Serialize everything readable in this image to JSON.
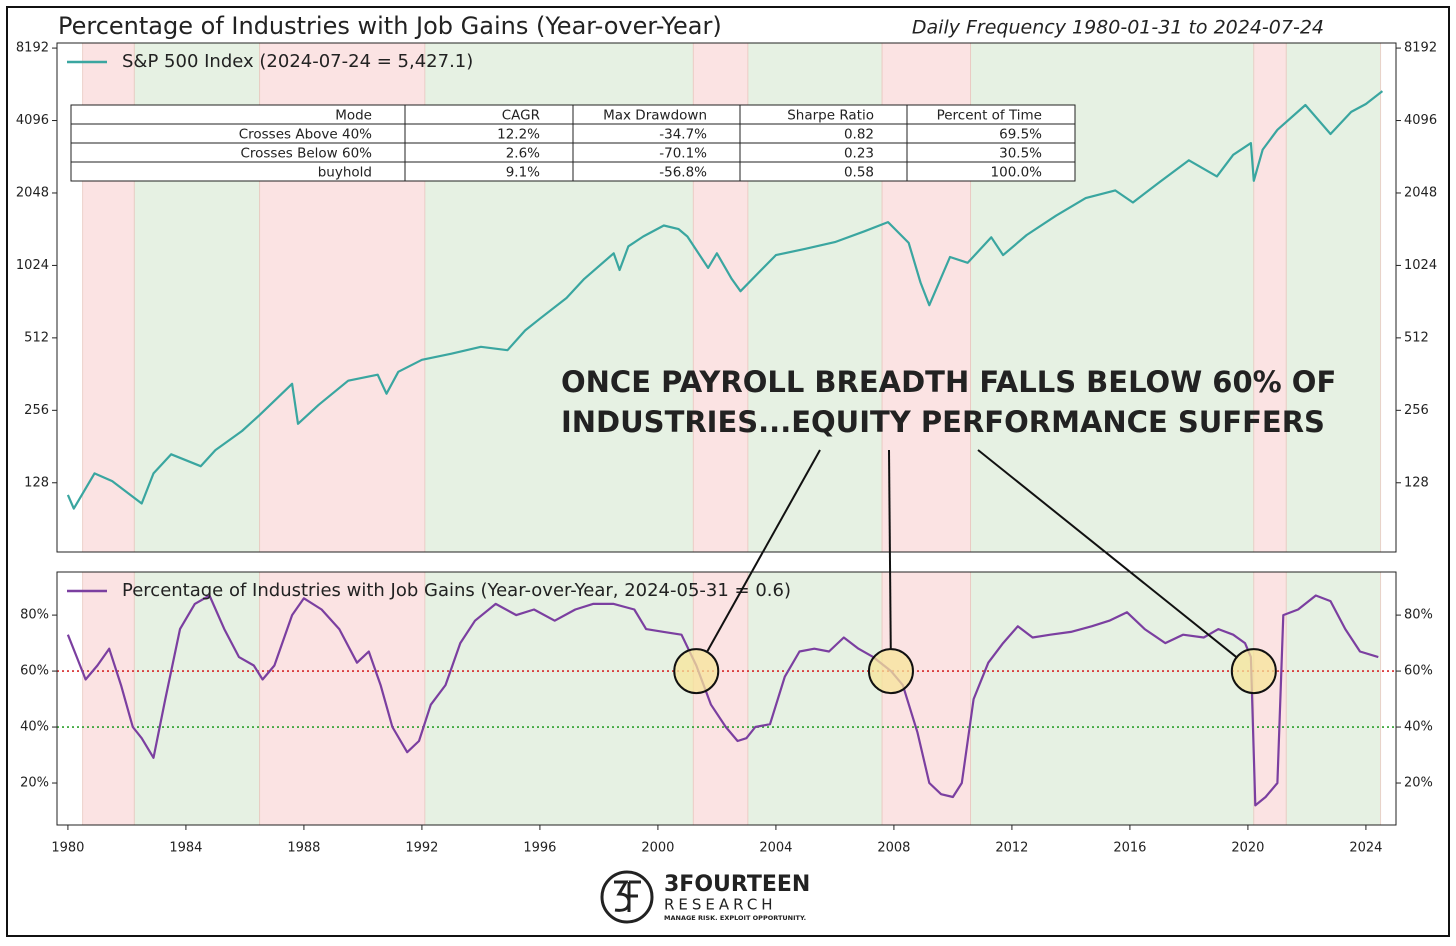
{
  "title": "Percentage of Industries with Job Gains (Year-over-Year)",
  "subtitle": "Daily Frequency 1980-01-31 to 2024-07-24",
  "regimes": [
    {
      "start": 1980.5,
      "end": 1982.25,
      "color": "#fbe3e3"
    },
    {
      "start": 1982.25,
      "end": 1986.5,
      "color": "#e6f1e3"
    },
    {
      "start": 1986.5,
      "end": 1992.1,
      "color": "#fbe3e3"
    },
    {
      "start": 1992.1,
      "end": 2001.2,
      "color": "#e6f1e3"
    },
    {
      "start": 2001.2,
      "end": 2003.05,
      "color": "#fbe3e3"
    },
    {
      "start": 2003.05,
      "end": 2007.6,
      "color": "#e6f1e3"
    },
    {
      "start": 2007.6,
      "end": 2010.6,
      "color": "#fbe3e3"
    },
    {
      "start": 2010.6,
      "end": 2020.2,
      "color": "#e6f1e3"
    },
    {
      "start": 2020.2,
      "end": 2021.3,
      "color": "#fbe3e3"
    },
    {
      "start": 2021.3,
      "end": 2024.5,
      "color": "#e6f1e3"
    }
  ],
  "table": {
    "header": [
      "Mode",
      "CAGR",
      "Max Drawdown",
      "Sharpe Ratio",
      "Percent of Time"
    ],
    "rows": [
      [
        "Crosses Above 40%",
        "12.2%",
        "-34.7%",
        "0.82",
        "69.5%"
      ],
      [
        "Crosses Below 60%",
        "2.6%",
        "-70.1%",
        "0.23",
        "30.5%"
      ],
      [
        "buyhold",
        "9.1%",
        "-56.8%",
        "0.58",
        "100.0%"
      ]
    ]
  },
  "logo": {
    "name": "3FOURTEEN",
    "sub": "RESEARCH",
    "tagline": "MANAGE RISK. EXPLOIT OPPORTUNITY."
  },
  "chart_data": [
    {
      "type": "line",
      "yscale": "log",
      "legend": "upper left",
      "xlim": [
        1979.63,
        2025.02
      ],
      "ylim": [
        66,
        8600
      ],
      "yticks": [
        128,
        256,
        512,
        1024,
        2048,
        4096,
        8192
      ],
      "x": [
        1980.0,
        1980.2,
        1980.9,
        1981.5,
        1982.5,
        1982.9,
        1983.5,
        1984.5,
        1985.0,
        1985.9,
        1986.5,
        1987.6,
        1987.8,
        1988.5,
        1989.5,
        1990.5,
        1990.8,
        1991.2,
        1992.0,
        1993.0,
        1994.0,
        1994.9,
        1995.5,
        1996.0,
        1996.9,
        1997.5,
        1998.5,
        1998.7,
        1999.0,
        1999.5,
        2000.2,
        2000.7,
        2001.0,
        2001.7,
        2002.0,
        2002.5,
        2002.8,
        2003.5,
        2004.0,
        2005.0,
        2006.0,
        2007.0,
        2007.8,
        2008.5,
        2008.9,
        2009.2,
        2009.9,
        2010.5,
        2011.3,
        2011.7,
        2012.5,
        2013.5,
        2014.5,
        2015.5,
        2016.1,
        2017.0,
        2018.0,
        2018.95,
        2019.5,
        2020.1,
        2020.2,
        2020.5,
        2021.0,
        2021.95,
        2022.8,
        2023.5,
        2024.0,
        2024.56
      ],
      "series": [
        {
          "name": "S&P 500 Index (2024-07-24 = 5,427.1)",
          "color": "#3aa6a0",
          "values": [
            114,
            100,
            140,
            130,
            105,
            140,
            168,
            150,
            175,
            210,
            245,
            330,
            225,
            270,
            340,
            360,
            300,
            370,
            415,
            440,
            470,
            455,
            550,
            615,
            750,
            900,
            1150,
            980,
            1230,
            1350,
            1500,
            1450,
            1350,
            1000,
            1150,
            900,
            800,
            980,
            1130,
            1200,
            1280,
            1420,
            1550,
            1270,
            870,
            700,
            1110,
            1050,
            1340,
            1130,
            1370,
            1650,
            1950,
            2100,
            1870,
            2270,
            2800,
            2400,
            2950,
            3300,
            2300,
            3100,
            3750,
            4750,
            3600,
            4450,
            4800,
            5427.1
          ]
        }
      ]
    },
    {
      "type": "line",
      "legend": "upper left",
      "xlim": [
        1979.63,
        2025.02
      ],
      "ylim": [
        5,
        95.4
      ],
      "xticks": [
        1980,
        1984,
        1988,
        1992,
        1996,
        2000,
        2004,
        2008,
        2012,
        2016,
        2020,
        2024
      ],
      "yticks": [
        {
          "value": 20,
          "label": "20%"
        },
        {
          "value": 40,
          "label": "40%"
        },
        {
          "value": 60,
          "label": "60%"
        },
        {
          "value": 80,
          "label": "80%"
        }
      ],
      "hlines": [
        {
          "value": 60,
          "color": "#d62728"
        },
        {
          "value": 40,
          "color": "#2ca02c"
        }
      ],
      "highlights": [
        {
          "x": 2001.3,
          "y": 60
        },
        {
          "x": 2007.9,
          "y": 60
        },
        {
          "x": 2020.2,
          "y": 60
        }
      ],
      "annotation": [
        "ONCE PAYROLL BREADTH FALLS BELOW 60% OF",
        "INDUSTRIES...EQUITY PERFORMANCE SUFFERS"
      ],
      "x": [
        1980.0,
        1980.3,
        1980.6,
        1981.0,
        1981.4,
        1981.8,
        1982.2,
        1982.5,
        1982.9,
        1983.3,
        1983.8,
        1984.3,
        1984.8,
        1985.3,
        1985.8,
        1986.3,
        1986.6,
        1987.0,
        1987.6,
        1988.0,
        1988.6,
        1989.2,
        1989.8,
        1990.2,
        1990.6,
        1991.0,
        1991.5,
        1991.9,
        1992.3,
        1992.8,
        1993.3,
        1993.8,
        1994.5,
        1995.2,
        1995.8,
        1996.5,
        1997.2,
        1997.8,
        1998.5,
        1999.2,
        1999.6,
        2000.2,
        2000.8,
        2001.3,
        2001.8,
        2002.3,
        2002.7,
        2003.0,
        2003.3,
        2003.8,
        2004.3,
        2004.8,
        2005.3,
        2005.8,
        2006.3,
        2006.8,
        2007.3,
        2007.9,
        2008.3,
        2008.8,
        2009.2,
        2009.6,
        2010.0,
        2010.3,
        2010.7,
        2011.2,
        2011.7,
        2012.2,
        2012.7,
        2013.3,
        2014.0,
        2014.7,
        2015.3,
        2015.9,
        2016.5,
        2017.2,
        2017.8,
        2018.5,
        2019.0,
        2019.5,
        2019.9,
        2020.1,
        2020.25,
        2020.6,
        2021.0,
        2021.2,
        2021.7,
        2022.3,
        2022.8,
        2023.3,
        2023.8,
        2024.42
      ],
      "series": [
        {
          "name": "Percentage of Industries with Job Gains (Year-over-Year, 2024-05-31 = 0.6)",
          "color": "#7b3fa0",
          "values": [
            73,
            65,
            57,
            62,
            68,
            55,
            40,
            36,
            29,
            50,
            75,
            84,
            87,
            75,
            65,
            62,
            57,
            62,
            80,
            86,
            82,
            75,
            63,
            67,
            55,
            40,
            31,
            35,
            48,
            55,
            70,
            78,
            84,
            80,
            82,
            78,
            82,
            84,
            84,
            82,
            75,
            74,
            73,
            62,
            48,
            40,
            35,
            36,
            40,
            41,
            58,
            67,
            68,
            67,
            72,
            68,
            65,
            60,
            55,
            38,
            20,
            16,
            15,
            20,
            50,
            63,
            70,
            76,
            72,
            73,
            74,
            76,
            78,
            81,
            75,
            70,
            73,
            72,
            75,
            73,
            70,
            65,
            12,
            15,
            20,
            80,
            82,
            87,
            85,
            75,
            67,
            65
          ]
        }
      ]
    }
  ]
}
